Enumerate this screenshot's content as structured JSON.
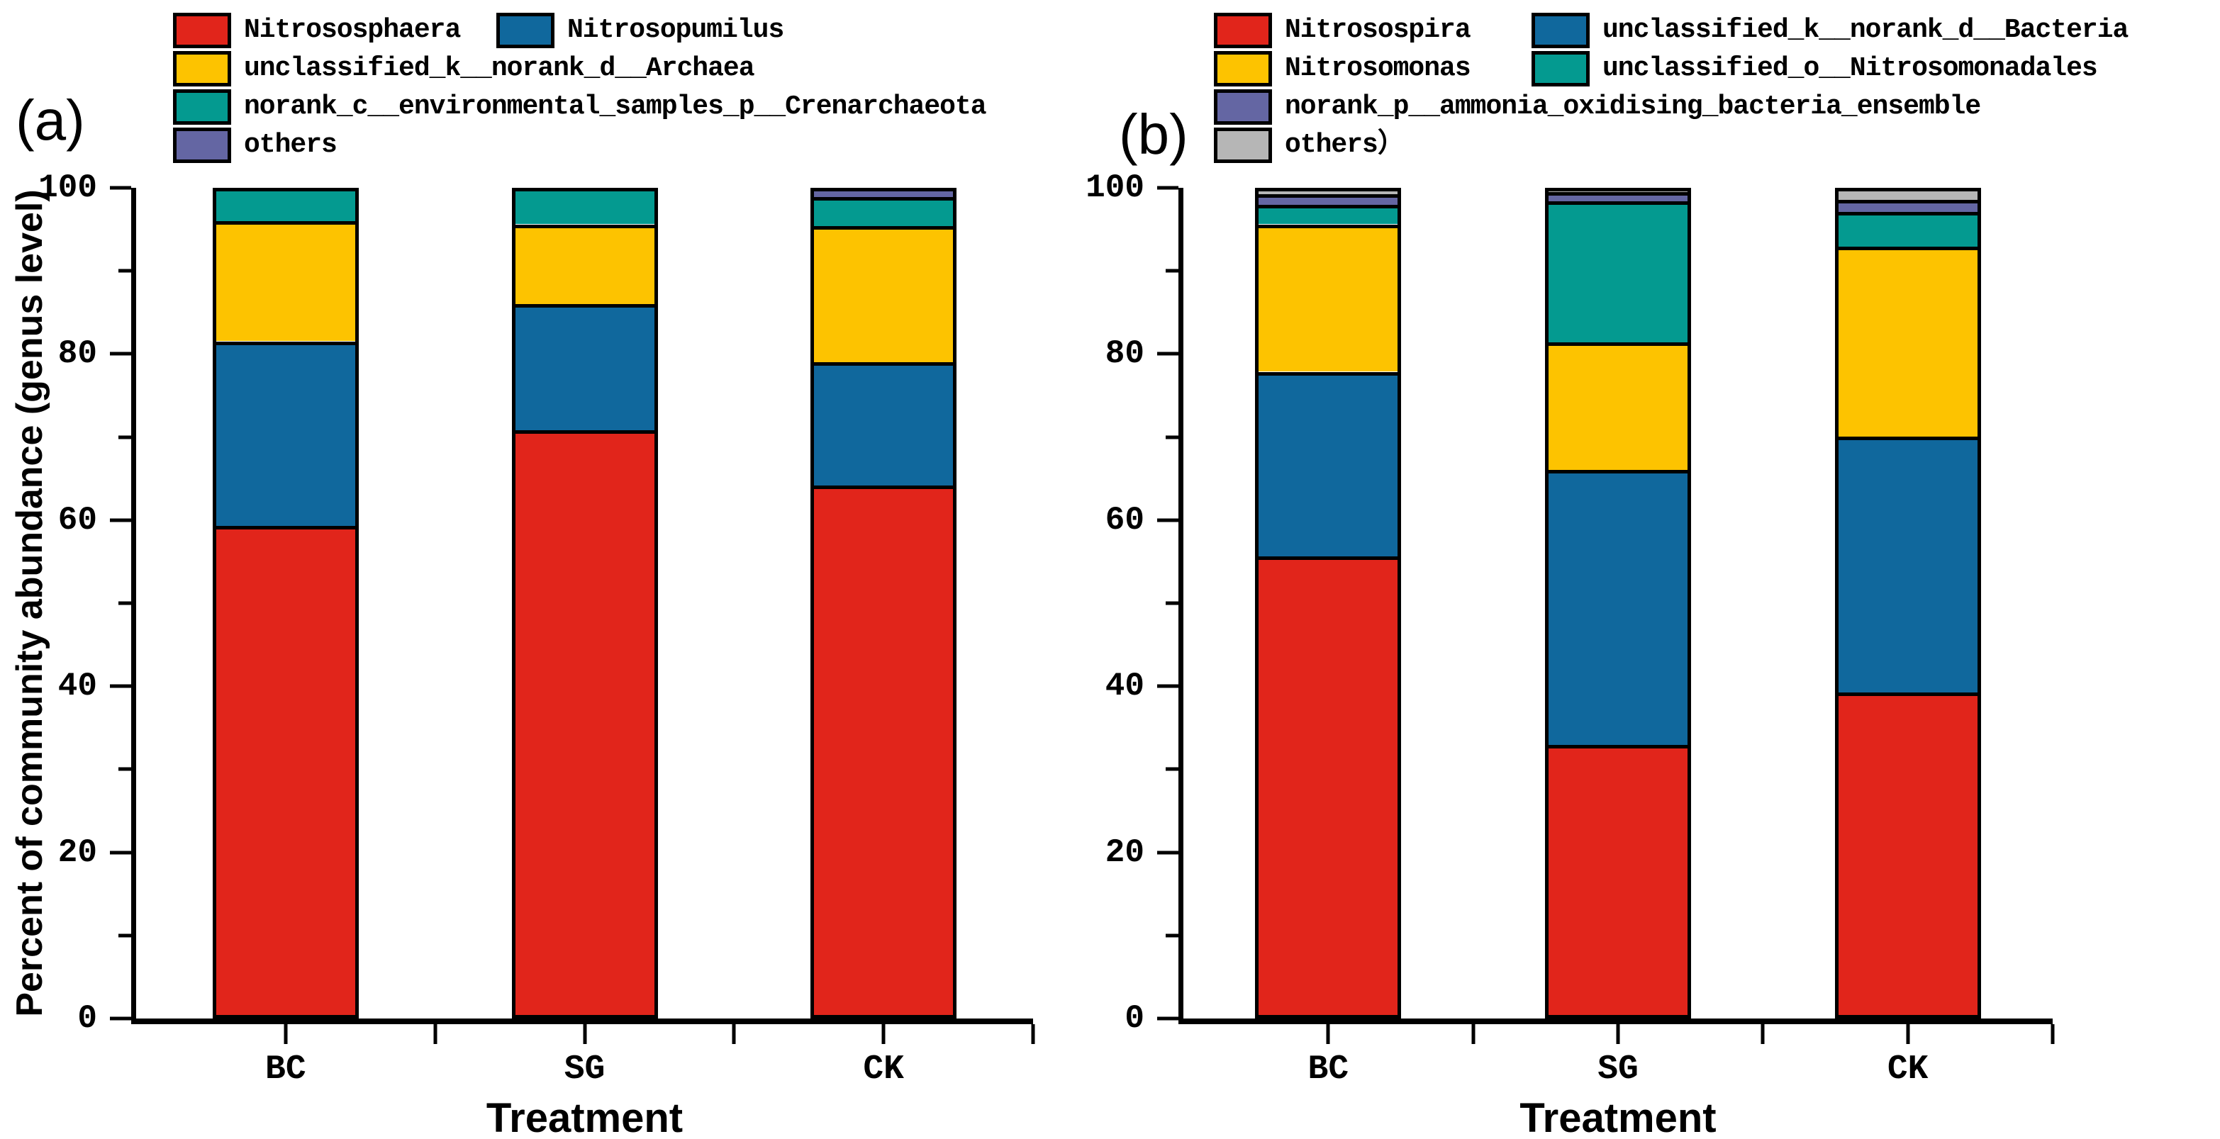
{
  "figure": {
    "background": "#ffffff",
    "axis_color": "#000000",
    "bar_border_color": "#000000"
  },
  "chart_data": [
    {
      "type": "bar",
      "stacked": true,
      "panel_label": "(a)",
      "xlabel": "Treatment",
      "ylabel": "Percent of community abundance (genus level)",
      "categories": [
        "BC",
        "SG",
        "CK"
      ],
      "ylim": [
        0,
        100
      ],
      "yticks_major": [
        0,
        20,
        40,
        60,
        80,
        100
      ],
      "yticks_minor": [
        10,
        30,
        50,
        70,
        90
      ],
      "grid": false,
      "legend_position": "top",
      "legend_rows": [
        [
          0,
          1
        ],
        [
          2
        ],
        [
          3
        ],
        [
          4
        ]
      ],
      "series": [
        {
          "name": "Nitrososphaera",
          "color": "#e1251b",
          "values": [
            59.4,
            71.0,
            64.3
          ]
        },
        {
          "name": "Nitrosopumilus",
          "color": "#10689d",
          "values": [
            22.4,
            15.3,
            15.0
          ]
        },
        {
          "name": "unclassified_k__norank_d__Archaea",
          "color": "#fdc300",
          "values": [
            14.6,
            9.7,
            16.5
          ]
        },
        {
          "name": "norank_c__environmental_samples_p__Crenarchaeota",
          "color": "#049a90",
          "values": [
            3.6,
            4.0,
            3.5
          ]
        },
        {
          "name": "others",
          "color": "#6466a3",
          "values": [
            0.0,
            0.0,
            0.7
          ]
        }
      ]
    },
    {
      "type": "bar",
      "stacked": true,
      "panel_label": "(b)",
      "xlabel": "Treatment",
      "ylabel": "",
      "categories": [
        "BC",
        "SG",
        "CK"
      ],
      "ylim": [
        0,
        100
      ],
      "yticks_major": [
        0,
        20,
        40,
        60,
        80,
        100
      ],
      "yticks_minor": [
        10,
        30,
        50,
        70,
        90
      ],
      "grid": false,
      "legend_position": "top",
      "legend_rows": [
        [
          0,
          1
        ],
        [
          2,
          3
        ],
        [
          4
        ],
        [
          5
        ]
      ],
      "series": [
        {
          "name": "Nitrosospira",
          "color": "#e1251b",
          "values": [
            55.7,
            32.8,
            39.2
          ]
        },
        {
          "name": "unclassified_k__norank_d__Bacteria",
          "color": "#10689d",
          "values": [
            22.4,
            33.4,
            31.0
          ]
        },
        {
          "name": "Nitrosomonas",
          "color": "#fdc300",
          "values": [
            17.9,
            15.5,
            23.1
          ]
        },
        {
          "name": "unclassified_o__Nitrosomonadales",
          "color": "#049a90",
          "values": [
            2.4,
            17.1,
            4.2
          ]
        },
        {
          "name": "norank_p__ammonia_oxidising_bacteria_ensemble",
          "color": "#6466a3",
          "values": [
            1.3,
            1.1,
            1.5
          ]
        },
        {
          "name": "others）",
          "color": "#b6b6b6",
          "values": [
            0.3,
            0.1,
            1.0
          ]
        }
      ]
    }
  ]
}
